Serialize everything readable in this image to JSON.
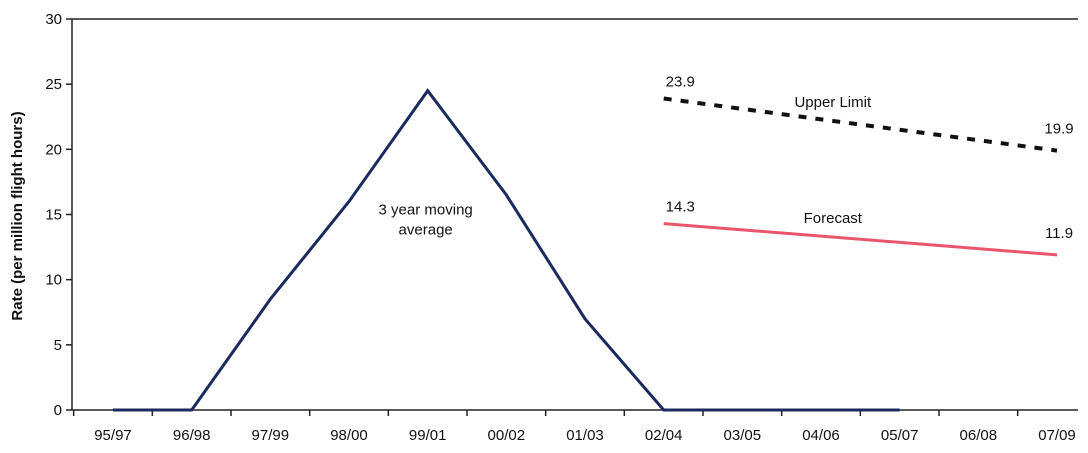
{
  "chart_data": {
    "type": "line",
    "title": "",
    "xlabel": "",
    "ylabel": "Rate (per million flight hours)",
    "ylim": [
      0,
      30
    ],
    "y_ticks": [
      0,
      5,
      10,
      15,
      20,
      25,
      30
    ],
    "grid": false,
    "legend": "none",
    "categories": [
      "95/97",
      "96/98",
      "97/99",
      "98/00",
      "99/01",
      "00/02",
      "01/03",
      "02/04",
      "03/05",
      "04/06",
      "05/07",
      "06/08",
      "07/09"
    ],
    "series": [
      {
        "name": "3 year moving average",
        "style": "solid",
        "color": "#1a2a5e",
        "values": [
          0,
          0,
          8.5,
          16,
          24.5,
          16.5,
          7,
          0,
          0,
          0,
          0,
          null,
          null
        ]
      },
      {
        "name": "Upper Limit",
        "style": "dotted",
        "color": "#111111",
        "values": [
          null,
          null,
          null,
          null,
          null,
          null,
          null,
          23.9,
          null,
          null,
          null,
          null,
          19.9
        ]
      },
      {
        "name": "Forecast",
        "style": "solid",
        "color": "#e8566b",
        "values": [
          null,
          null,
          null,
          null,
          null,
          null,
          null,
          14.3,
          null,
          null,
          null,
          null,
          11.9
        ]
      }
    ],
    "data_labels": [
      {
        "series": "Upper Limit",
        "category": "02/04",
        "text": "23.9"
      },
      {
        "series": "Upper Limit",
        "category": "07/09",
        "text": "19.9"
      },
      {
        "series": "Forecast",
        "category": "02/04",
        "text": "14.3"
      },
      {
        "series": "Forecast",
        "category": "07/09",
        "text": "11.9"
      }
    ],
    "series_labels": [
      {
        "series": "3 year moving average",
        "lines": [
          "3 year moving",
          "average"
        ]
      },
      {
        "series": "Upper Limit",
        "lines": [
          "Upper Limit"
        ]
      },
      {
        "series": "Forecast",
        "lines": [
          "Forecast"
        ]
      }
    ]
  }
}
